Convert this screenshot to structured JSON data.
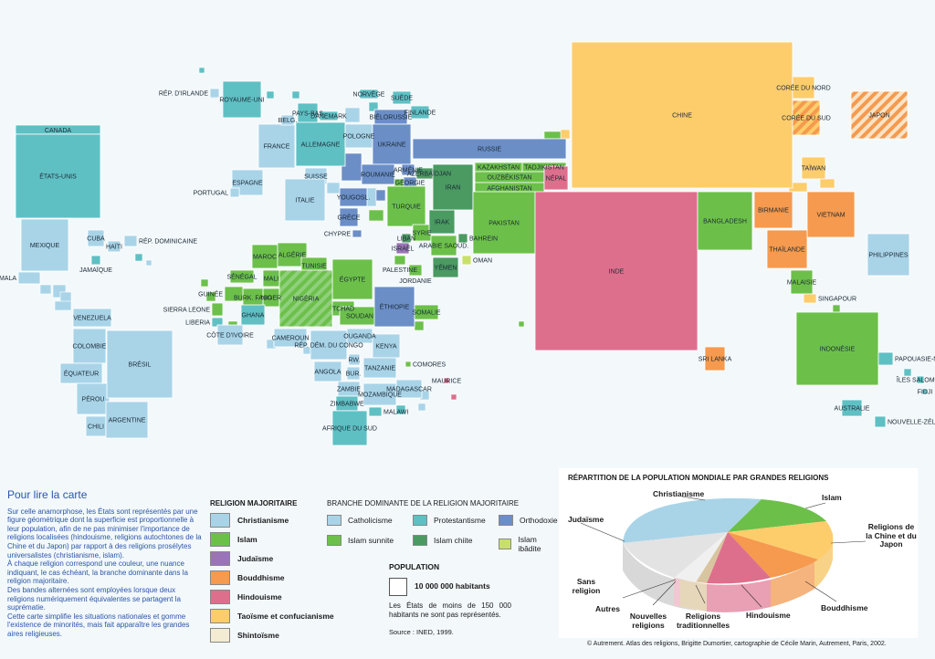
{
  "colors": {
    "catholicisme": "#a9d4e8",
    "protestantisme": "#5fc0c4",
    "orthodoxie": "#6b8ec7",
    "islam_sunnite": "#6cc04a",
    "islam_chiite": "#4a9a62",
    "islam_ibadite": "#c8e06a",
    "judaisme": "#9b74b7",
    "bouddhisme": "#f59a4e",
    "hindouisme": "#de6f8c",
    "taoisme": "#fdcd6c",
    "shintoisme": "#f3ecd3",
    "background": "#f3f8fb"
  },
  "countries": [
    {
      "name": "CANADA",
      "color": "protestantisme"
    },
    {
      "name": "ÉTATS-UNIS",
      "color": "protestantisme"
    },
    {
      "name": "MEXIQUE",
      "color": "catholicisme"
    },
    {
      "name": "GUATEMALA",
      "color": "catholicisme"
    },
    {
      "name": "CUBA",
      "color": "catholicisme"
    },
    {
      "name": "HAÏTI",
      "color": "catholicisme"
    },
    {
      "name": "RÉP. DOMINICAINE",
      "color": "catholicisme"
    },
    {
      "name": "JAMAÏQUE",
      "color": "protestantisme"
    },
    {
      "name": "VENEZUELA",
      "color": "catholicisme"
    },
    {
      "name": "COLOMBIE",
      "color": "catholicisme"
    },
    {
      "name": "ÉQUATEUR",
      "color": "catholicisme"
    },
    {
      "name": "PÉROU",
      "color": "catholicisme"
    },
    {
      "name": "BRÉSIL",
      "color": "catholicisme"
    },
    {
      "name": "CHILI",
      "color": "catholicisme"
    },
    {
      "name": "ARGENTINE",
      "color": "catholicisme"
    },
    {
      "name": "RÉP. D'IRLANDE",
      "color": "catholicisme"
    },
    {
      "name": "ROYAUME-UNI",
      "color": "protestantisme"
    },
    {
      "name": "FRANCE",
      "color": "catholicisme"
    },
    {
      "name": "ESPAGNE",
      "color": "catholicisme"
    },
    {
      "name": "PORTUGAL",
      "color": "catholicisme"
    },
    {
      "name": "BELG.",
      "color": "catholicisme"
    },
    {
      "name": "PAYS-BAS",
      "color": "protestantisme"
    },
    {
      "name": "DANEMARK",
      "color": "protestantisme"
    },
    {
      "name": "ALLEMAGNE",
      "color": "protestantisme"
    },
    {
      "name": "SUISSE",
      "color": "catholicisme"
    },
    {
      "name": "ITALIE",
      "color": "catholicisme"
    },
    {
      "name": "POLOGNE",
      "color": "catholicisme"
    },
    {
      "name": "NORVÈGE",
      "color": "protestantisme"
    },
    {
      "name": "SUÈDE",
      "color": "protestantisme"
    },
    {
      "name": "FINLANDE",
      "color": "protestantisme"
    },
    {
      "name": "BIÉLORUSSIE",
      "color": "orthodoxie"
    },
    {
      "name": "UKRAINE",
      "color": "orthodoxie"
    },
    {
      "name": "ROUMANIE",
      "color": "orthodoxie"
    },
    {
      "name": "YOUGOSL.",
      "color": "orthodoxie"
    },
    {
      "name": "GRÈCE",
      "color": "orthodoxie"
    },
    {
      "name": "RUSSIE",
      "color": "orthodoxie"
    },
    {
      "name": "ARMÉNIE",
      "color": "orthodoxie"
    },
    {
      "name": "AZERBAÏDJAN",
      "color": "islam_chiite"
    },
    {
      "name": "GÉORGIE",
      "color": "orthodoxie"
    },
    {
      "name": "TURQUIE",
      "color": "islam_sunnite"
    },
    {
      "name": "CHYPRE",
      "color": "orthodoxie"
    },
    {
      "name": "SYRIE",
      "color": "islam_sunnite"
    },
    {
      "name": "LIBAN",
      "color": "islam_chiite"
    },
    {
      "name": "ISRAËL",
      "color": "judaisme"
    },
    {
      "name": "PALESTINE",
      "color": "islam_sunnite"
    },
    {
      "name": "JORDANIE",
      "color": "islam_sunnite"
    },
    {
      "name": "IRAK",
      "color": "islam_chiite"
    },
    {
      "name": "IRAN",
      "color": "islam_chiite"
    },
    {
      "name": "ARABIE SAOUD.",
      "color": "islam_sunnite"
    },
    {
      "name": "BAHREIN",
      "color": "islam_chiite"
    },
    {
      "name": "YÉMEN",
      "color": "islam_chiite"
    },
    {
      "name": "OMAN",
      "color": "islam_ibadite"
    },
    {
      "name": "KAZAKHSTAN",
      "color": "islam_sunnite"
    },
    {
      "name": "OUZBÉKISTAN",
      "color": "islam_sunnite"
    },
    {
      "name": "TADJIKISTAN",
      "color": "islam_sunnite"
    },
    {
      "name": "AFGHANISTAN",
      "color": "islam_sunnite"
    },
    {
      "name": "PAKISTAN",
      "color": "islam_sunnite"
    },
    {
      "name": "NÉPAL",
      "color": "hindouisme"
    },
    {
      "name": "INDE",
      "color": "hindouisme"
    },
    {
      "name": "BANGLADESH",
      "color": "islam_sunnite"
    },
    {
      "name": "SRI LANKA",
      "color": "bouddhisme"
    },
    {
      "name": "CHINE",
      "color": "taoisme"
    },
    {
      "name": "CORÉE DU NORD",
      "color": "taoisme"
    },
    {
      "name": "CORÉE DU SUD",
      "color": "bouddhisme"
    },
    {
      "name": "JAPON",
      "color": "bouddhisme"
    },
    {
      "name": "TAÏWAN",
      "color": "taoisme"
    },
    {
      "name": "BIRMANIE",
      "color": "bouddhisme"
    },
    {
      "name": "VIETNAM",
      "color": "bouddhisme"
    },
    {
      "name": "THAÏLANDE",
      "color": "bouddhisme"
    },
    {
      "name": "MALAISIE",
      "color": "islam_sunnite"
    },
    {
      "name": "SINGAPOUR",
      "color": "taoisme"
    },
    {
      "name": "PHILIPPINES",
      "color": "catholicisme"
    },
    {
      "name": "INDONÉSIE",
      "color": "islam_sunnite"
    },
    {
      "name": "PAPOUASIE-NOUVELLE-GUINÉE",
      "color": "protestantisme"
    },
    {
      "name": "ÎLES SALOMON",
      "color": "protestantisme"
    },
    {
      "name": "FIDJI",
      "color": "protestantisme"
    },
    {
      "name": "AUSTRALIE",
      "color": "protestantisme"
    },
    {
      "name": "NOUVELLE-ZÉLANDE",
      "color": "protestantisme"
    },
    {
      "name": "MAROC",
      "color": "islam_sunnite"
    },
    {
      "name": "ALGÉRIE",
      "color": "islam_sunnite"
    },
    {
      "name": "TUNISIE",
      "color": "islam_sunnite"
    },
    {
      "name": "ÉGYPTE",
      "color": "islam_sunnite"
    },
    {
      "name": "SÉNÉGAL",
      "color": "islam_sunnite"
    },
    {
      "name": "MALI",
      "color": "islam_sunnite"
    },
    {
      "name": "NIGER",
      "color": "islam_sunnite"
    },
    {
      "name": "BURK. FASO",
      "color": "islam_sunnite"
    },
    {
      "name": "GUINÉE",
      "color": "islam_sunnite"
    },
    {
      "name": "SIERRA LEONE",
      "color": "islam_sunnite"
    },
    {
      "name": "LIBERIA",
      "color": "protestantisme"
    },
    {
      "name": "GHANA",
      "color": "protestantisme"
    },
    {
      "name": "CÔTE D'IVOIRE",
      "color": "catholicisme"
    },
    {
      "name": "NIGÉRIA",
      "color": "islam_sunnite"
    },
    {
      "name": "TCHAD",
      "color": "islam_sunnite"
    },
    {
      "name": "SOUDAN",
      "color": "islam_sunnite"
    },
    {
      "name": "ÉTHIOPIE",
      "color": "orthodoxie"
    },
    {
      "name": "SOMALIE",
      "color": "islam_sunnite"
    },
    {
      "name": "CAMEROUN",
      "color": "catholicisme"
    },
    {
      "name": "RÉP. DÉM. DU CONGO",
      "color": "catholicisme"
    },
    {
      "name": "OUGANDA",
      "color": "catholicisme"
    },
    {
      "name": "KENYA",
      "color": "catholicisme"
    },
    {
      "name": "RW.",
      "color": "catholicisme"
    },
    {
      "name": "BUR.",
      "color": "catholicisme"
    },
    {
      "name": "TANZANIE",
      "color": "catholicisme"
    },
    {
      "name": "ANGOLA",
      "color": "catholicisme"
    },
    {
      "name": "ZAMBIE",
      "color": "catholicisme"
    },
    {
      "name": "ZIMBABWE",
      "color": "protestantisme"
    },
    {
      "name": "MOZAMBIQUE",
      "color": "catholicisme"
    },
    {
      "name": "MALAWI",
      "color": "protestantisme"
    },
    {
      "name": "MADAGASCAR",
      "color": "catholicisme"
    },
    {
      "name": "AFRIQUE DU SUD",
      "color": "protestantisme"
    },
    {
      "name": "COMORES",
      "color": "islam_sunnite"
    },
    {
      "name": "MAURICE",
      "color": "hindouisme"
    }
  ],
  "reading": {
    "title": "Pour lire la carte",
    "p1": "Sur celle anamorphose, les États sont représentés par une figure géométrique dont la superficie est proportionnelle à leur population, afin de ne pas minimiser l'importance de religions localisées (hindouisme, religions autochtones de la Chine et du Japon) par rapport à des religions prosélytes universalistes (christianisme, islam).",
    "p2": "À chaque religion correspond une couleur, une nuance indiquant, le cas échéant, la branche dominante dans la religion majoritaire.",
    "p3": "Des bandes alternées sont employées lorsque deux religions numériquement équivalentes se partagent la suprématie.",
    "p4": "Cette carte simplifie les situations nationales et gomme l'existence de minorités, mais fait apparaître les grandes aires religieuses."
  },
  "legend": {
    "heading": "RELIGION MAJORITAIRE",
    "branch_heading": "BRANCHE DOMINANTE DE LA RELIGION MAJORITAIRE",
    "religions": [
      {
        "label": "Christianisme",
        "color": "catholicisme"
      },
      {
        "label": "Islam",
        "color": "islam_sunnite"
      },
      {
        "label": "Judaïsme",
        "color": "judaisme"
      },
      {
        "label": "Bouddhisme",
        "color": "bouddhisme"
      },
      {
        "label": "Hindouisme",
        "color": "hindouisme"
      },
      {
        "label": "Taoïsme et confucianisme",
        "color": "taoisme"
      },
      {
        "label": "Shintoïsme",
        "color": "shintoisme"
      }
    ],
    "branches": [
      {
        "label": "Catholicisme",
        "color": "catholicisme"
      },
      {
        "label": "Protestantisme",
        "color": "protestantisme"
      },
      {
        "label": "Orthodoxie",
        "color": "orthodoxie"
      },
      {
        "label": "Islam sunnite",
        "color": "islam_sunnite"
      },
      {
        "label": "Islam chiite",
        "color": "islam_chiite"
      },
      {
        "label": "Islam ibâdite",
        "color": "islam_ibadite"
      }
    ],
    "population_title": "POPULATION",
    "population_unit": "10 000 000 habitants",
    "population_note": "Les États de moins de 150 000 habitants ne sont pas représentés.",
    "source": "Source : INED, 1999."
  },
  "pie": {
    "title": "RÉPARTITION DE LA POPULATION MONDIALE PAR GRANDES RELIGIONS",
    "labels": {
      "christianisme": "Christianisme",
      "islam": "Islam",
      "chine_japon": "Religions de la Chine et du Japon",
      "bouddhisme": "Bouddhisme",
      "hindouisme": "Hindouisme",
      "traditionnelles": "Religions traditionnelles",
      "nouvelles": "Nouvelles religions",
      "autres": "Autres",
      "sans": "Sans religion",
      "judaisme": "Judaïsme"
    }
  },
  "credit": "© Autrement. Atlas des religions, Brigitte Dumortier, cartographie de Cécile Marin, Autrement, Paris, 2002."
}
